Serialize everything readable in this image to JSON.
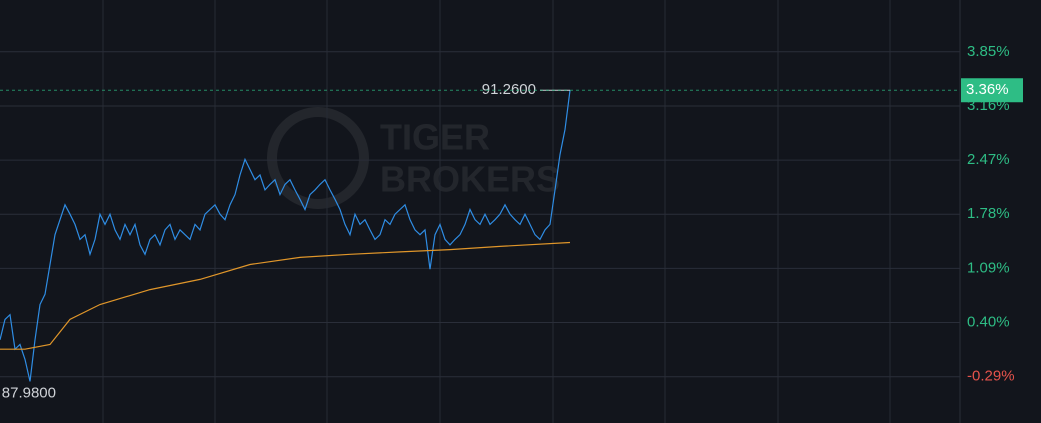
{
  "chart_data": {
    "type": "line",
    "watermark": [
      "TIGER",
      "BROKERS"
    ],
    "xlim": [
      0,
      192
    ],
    "ylim": [
      -0.88,
      4.51
    ],
    "yticks": [
      {
        "value": 3.85,
        "label": "3.85%"
      },
      {
        "value": 3.16,
        "label": "3.16%"
      },
      {
        "value": 2.47,
        "label": "2.47%"
      },
      {
        "value": 1.78,
        "label": "1.78%"
      },
      {
        "value": 1.09,
        "label": "1.09%"
      },
      {
        "value": 0.4,
        "label": "0.40%"
      },
      {
        "value": -0.29,
        "label": "-0.29%"
      }
    ],
    "grid": true,
    "last": {
      "value": 3.36,
      "label": "3.36%"
    },
    "high_label": "91.2600",
    "low_label": "87.9800",
    "series": [
      {
        "color": "#2f8de4",
        "values": [
          0.18,
          0.44,
          0.5,
          0.06,
          0.12,
          -0.07,
          -0.35,
          0.18,
          0.63,
          0.76,
          1.14,
          1.52,
          1.71,
          1.9,
          1.78,
          1.65,
          1.46,
          1.52,
          1.27,
          1.46,
          1.78,
          1.65,
          1.78,
          1.58,
          1.46,
          1.65,
          1.52,
          1.65,
          1.39,
          1.27,
          1.46,
          1.52,
          1.39,
          1.58,
          1.65,
          1.46,
          1.58,
          1.52,
          1.46,
          1.65,
          1.58,
          1.78,
          1.84,
          1.9,
          1.78,
          1.71,
          1.9,
          2.03,
          2.28,
          2.48,
          2.35,
          2.22,
          2.28,
          2.09,
          2.16,
          2.22,
          2.03,
          2.16,
          2.22,
          2.09,
          1.97,
          1.84,
          2.03,
          2.09,
          2.16,
          2.22,
          2.09,
          1.97,
          1.84,
          1.65,
          1.52,
          1.78,
          1.65,
          1.71,
          1.58,
          1.46,
          1.52,
          1.71,
          1.65,
          1.78,
          1.84,
          1.9,
          1.71,
          1.58,
          1.52,
          1.58,
          1.08,
          1.52,
          1.65,
          1.46,
          1.39,
          1.46,
          1.52,
          1.65,
          1.84,
          1.71,
          1.65,
          1.78,
          1.65,
          1.71,
          1.78,
          1.9,
          1.78,
          1.71,
          1.65,
          1.78,
          1.65,
          1.52,
          1.46,
          1.58,
          1.65,
          2.09,
          2.54,
          2.86,
          3.36
        ]
      },
      {
        "color": "#e0962a",
        "x": [
          0,
          5,
          10,
          14,
          20,
          30,
          40,
          50,
          60,
          70,
          80,
          90,
          100,
          114
        ],
        "values": [
          0.06,
          0.06,
          0.12,
          0.44,
          0.63,
          0.82,
          0.95,
          1.14,
          1.23,
          1.27,
          1.3,
          1.33,
          1.37,
          1.42
        ]
      }
    ]
  }
}
